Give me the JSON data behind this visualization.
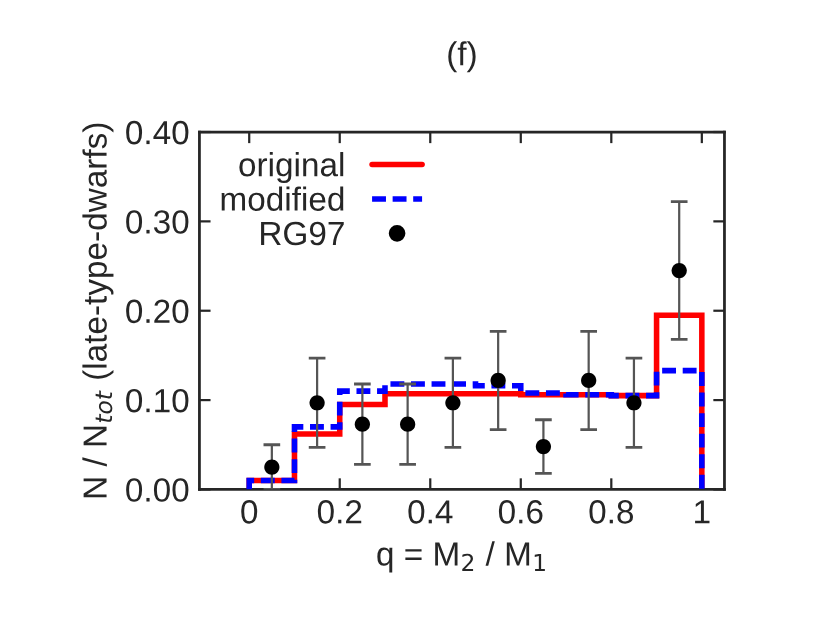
{
  "chart_data": {
    "type": "histogram",
    "title": "(f)",
    "xlabel": "q = M$_{2}$ / M$_{1}$",
    "ylabel": "N / N$_{tot}$ (late-type-dwarfs)",
    "bins": [
      0,
      0.1,
      0.2,
      0.3,
      0.4,
      0.5,
      0.6,
      0.7,
      0.8,
      0.9,
      1.0
    ],
    "series": [
      {
        "name": "original",
        "color": "#ff0000",
        "line_style": "solid",
        "values": [
          0.01,
          0.062,
          0.095,
          0.107,
          0.107,
          0.107,
          0.106,
          0.106,
          0.105,
          0.195
        ]
      },
      {
        "name": "modified",
        "color": "#0000ff",
        "line_style": "dashed",
        "values": [
          0.01,
          0.07,
          0.11,
          0.118,
          0.118,
          0.116,
          0.108,
          0.106,
          0.105,
          0.133
        ]
      },
      {
        "name": "RG97",
        "type": "scatter",
        "color": "#000000",
        "marker": "circle",
        "x": [
          0.05,
          0.15,
          0.25,
          0.35,
          0.45,
          0.55,
          0.65,
          0.75,
          0.85,
          0.95
        ],
        "values": [
          0.025,
          0.097,
          0.073,
          0.073,
          0.097,
          0.122,
          0.048,
          0.122,
          0.097,
          0.245
        ],
        "errors": [
          0.025,
          0.05,
          0.045,
          0.045,
          0.05,
          0.055,
          0.03,
          0.055,
          0.05,
          0.077
        ]
      }
    ],
    "xlim": [
      -0.11,
      1.05
    ],
    "ylim": [
      0,
      0.4
    ],
    "xticks": [
      0,
      0.2,
      0.4,
      0.6,
      0.8,
      1
    ],
    "yticks": [
      {
        "value": 0,
        "label": "0.00"
      },
      {
        "value": 0.1,
        "label": "0.10"
      },
      {
        "value": 0.2,
        "label": "0.20"
      },
      {
        "value": 0.3,
        "label": "0.30"
      },
      {
        "value": 0.4,
        "label": "0.40"
      }
    ],
    "legend": "top left",
    "grid": false
  }
}
